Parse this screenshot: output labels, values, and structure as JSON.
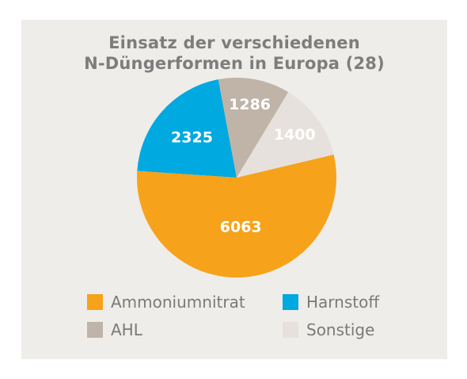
{
  "chart_data": {
    "type": "pie",
    "title_lines": [
      "Einsatz der verschiedenen",
      "N-Düngerformen in Europa (28)"
    ],
    "slices": [
      {
        "name": "Ammoniumnitrat",
        "value": 6063,
        "label": "6063",
        "color": "#f7a21b"
      },
      {
        "name": "Harnstoff",
        "value": 2325,
        "label": "2325",
        "color": "#00a9e0"
      },
      {
        "name": "AHL",
        "value": 1286,
        "label": "1286",
        "color": "#bfb4a7"
      },
      {
        "name": "Sonstige",
        "value": 1400,
        "label": "1400",
        "color": "#e6e1dc"
      }
    ],
    "legend_placement": "bottom",
    "grid": false
  }
}
